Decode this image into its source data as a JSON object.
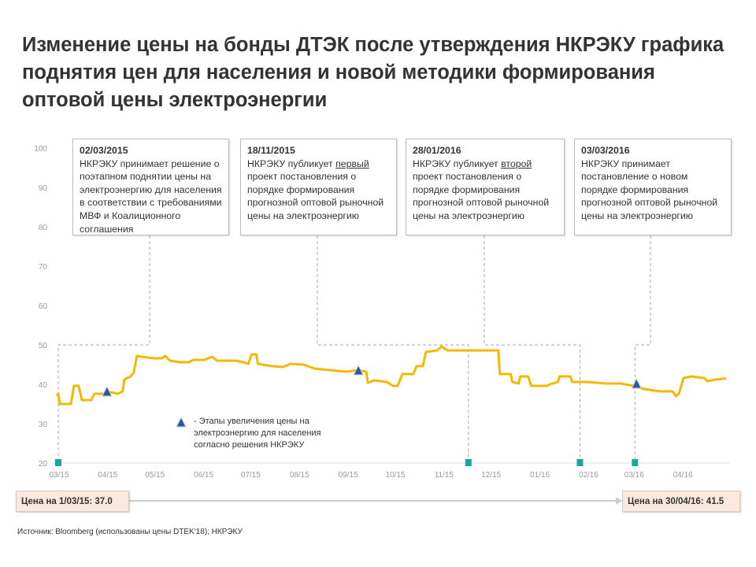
{
  "title": "Изменение цены на бонды ДТЭК после утверждения НКРЭКУ графика поднятия цен для населения и новой методики формирования оптовой цены электроэнергии",
  "events": [
    {
      "date": "02/03/2015",
      "pre": "НКРЭКУ принимает решение о поэтапном поднятии цены на электроэнергию для населения в соответствии с требованиями МВФ и Коалиционного соглашения",
      "underline": "",
      "post": "",
      "marker_date": "2015-03-02"
    },
    {
      "date": "18/11/2015",
      "pre": "НКРЭКУ публикует ",
      "underline": "первый",
      "post": " проект постановления о порядке формирования прогнозной оптовой рыночной цены на электроэнергию",
      "marker_date": "2015-11-18"
    },
    {
      "date": "28/01/2016",
      "pre": "НКРЭКУ публикует ",
      "underline": "второй",
      "post": " проект постановления о порядке формирования прогнозной оптовой рыночной цены на электроэнергию",
      "marker_date": "2016-01-28"
    },
    {
      "date": "03/03/2016",
      "pre": "НКРЭКУ принимает постановление о новом порядке формирования прогнозной оптовой рыночной цены на электроэнергию",
      "underline": "",
      "post": "",
      "marker_date": "2016-03-03"
    }
  ],
  "legend": "- Этапы увеличения цены на электроэнергию для населения согласно решения НКРЭКУ",
  "start_price_label": "Цена на 1/03/15: 37.0",
  "end_price_label": "Цена на 30/04/16: 41.5",
  "source": "Источник: Bloomberg (использованы цены DTEK'18); НКРЭКУ",
  "colors": {
    "line": "#f5b800",
    "triangle": "#2a5a9e",
    "event_marker": "#14a99a",
    "connector": "#aaaaaa",
    "price_box": "#fbe9dd"
  },
  "chart_data": {
    "type": "line",
    "title": "",
    "xlabel": "",
    "ylabel": "",
    "ylim": [
      20,
      100
    ],
    "yticks": [
      20,
      30,
      40,
      50,
      60,
      70,
      80,
      90,
      100
    ],
    "xlim": [
      "2015-03-01",
      "2016-04-30"
    ],
    "xticks": [
      {
        "date": "2015-03-01",
        "label": "03/15"
      },
      {
        "date": "2015-04-01",
        "label": "04/15"
      },
      {
        "date": "2015-05-01",
        "label": "05/15"
      },
      {
        "date": "2015-06-01",
        "label": "06/15"
      },
      {
        "date": "2015-07-01",
        "label": "07/15"
      },
      {
        "date": "2015-08-01",
        "label": "08/15"
      },
      {
        "date": "2015-09-01",
        "label": "09/15"
      },
      {
        "date": "2015-10-01",
        "label": "10/15"
      },
      {
        "date": "2015-11-01",
        "label": "11/15"
      },
      {
        "date": "2015-12-01",
        "label": "12/15"
      },
      {
        "date": "2016-01-01",
        "label": "01/16"
      },
      {
        "date": "2016-02-01",
        "label": "02/16"
      },
      {
        "date": "2016-03-01",
        "label": "03/16"
      },
      {
        "date": "2016-04-01",
        "label": "04/16"
      }
    ],
    "grid": false,
    "series": [
      {
        "points": [
          [
            "2015-03-01",
            37.0
          ],
          [
            "2015-03-02",
            37.6
          ],
          [
            "2015-03-03",
            35.0
          ],
          [
            "2015-03-10",
            35.0
          ],
          [
            "2015-03-12",
            39.6
          ],
          [
            "2015-03-15",
            39.6
          ],
          [
            "2015-03-17",
            36.0
          ],
          [
            "2015-03-23",
            36.0
          ],
          [
            "2015-03-25",
            37.6
          ],
          [
            "2015-04-01",
            37.6
          ],
          [
            "2015-04-04",
            38.0
          ],
          [
            "2015-04-09",
            37.6
          ],
          [
            "2015-04-12",
            38.2
          ],
          [
            "2015-04-13",
            41.2
          ],
          [
            "2015-04-17",
            42.0
          ],
          [
            "2015-04-19",
            43.0
          ],
          [
            "2015-04-21",
            47.2
          ],
          [
            "2015-04-24",
            47.0
          ],
          [
            "2015-05-02",
            46.6
          ],
          [
            "2015-05-07",
            46.6
          ],
          [
            "2015-05-09",
            47.2
          ],
          [
            "2015-05-12",
            46.0
          ],
          [
            "2015-05-19",
            45.6
          ],
          [
            "2015-05-24",
            45.6
          ],
          [
            "2015-05-27",
            46.2
          ],
          [
            "2015-06-03",
            46.2
          ],
          [
            "2015-06-08",
            47.0
          ],
          [
            "2015-06-11",
            46.0
          ],
          [
            "2015-06-23",
            46.0
          ],
          [
            "2015-06-28",
            45.6
          ],
          [
            "2015-07-01",
            45.2
          ],
          [
            "2015-07-03",
            47.6
          ],
          [
            "2015-07-06",
            47.6
          ],
          [
            "2015-07-07",
            45.2
          ],
          [
            "2015-07-16",
            44.6
          ],
          [
            "2015-07-23",
            44.4
          ],
          [
            "2015-07-28",
            45.2
          ],
          [
            "2015-08-05",
            45.0
          ],
          [
            "2015-08-12",
            44.0
          ],
          [
            "2015-08-22",
            43.6
          ],
          [
            "2015-09-01",
            43.2
          ],
          [
            "2015-09-09",
            43.6
          ],
          [
            "2015-09-14",
            43.2
          ],
          [
            "2015-09-15",
            40.4
          ],
          [
            "2015-09-19",
            41.0
          ],
          [
            "2015-09-27",
            40.6
          ],
          [
            "2015-10-01",
            39.6
          ],
          [
            "2015-10-04",
            39.6
          ],
          [
            "2015-10-07",
            42.6
          ],
          [
            "2015-10-14",
            42.6
          ],
          [
            "2015-10-16",
            44.6
          ],
          [
            "2015-10-20",
            44.6
          ],
          [
            "2015-10-22",
            48.2
          ],
          [
            "2015-10-29",
            48.6
          ],
          [
            "2015-11-01",
            49.6
          ],
          [
            "2015-11-03",
            49.0
          ],
          [
            "2015-11-05",
            48.6
          ],
          [
            "2015-12-07",
            48.6
          ],
          [
            "2015-12-08",
            42.6
          ],
          [
            "2015-12-15",
            42.6
          ],
          [
            "2015-12-16",
            40.6
          ],
          [
            "2015-12-20",
            40.2
          ],
          [
            "2015-12-21",
            42.0
          ],
          [
            "2015-12-26",
            42.0
          ],
          [
            "2015-12-28",
            39.6
          ],
          [
            "2016-01-07",
            39.6
          ],
          [
            "2016-01-09",
            40.0
          ],
          [
            "2016-01-14",
            40.6
          ],
          [
            "2016-01-15",
            42.0
          ],
          [
            "2016-01-22",
            42.0
          ],
          [
            "2016-01-23",
            40.6
          ],
          [
            "2016-02-01",
            40.6
          ],
          [
            "2016-02-13",
            40.2
          ],
          [
            "2016-02-23",
            40.2
          ],
          [
            "2016-03-02",
            39.6
          ],
          [
            "2016-03-09",
            38.8
          ],
          [
            "2016-03-19",
            38.2
          ],
          [
            "2016-03-27",
            38.2
          ],
          [
            "2016-03-29",
            37.0
          ],
          [
            "2016-03-31",
            37.6
          ],
          [
            "2016-04-03",
            41.6
          ],
          [
            "2016-04-08",
            42.0
          ],
          [
            "2016-04-16",
            41.6
          ],
          [
            "2016-04-18",
            40.8
          ],
          [
            "2016-04-23",
            41.2
          ],
          [
            "2016-04-30",
            41.5
          ]
        ]
      }
    ],
    "tariff_steps": [
      [
        "2015-04-02",
        38.0
      ],
      [
        "2015-09-09",
        43.4
      ],
      [
        "2016-03-04",
        40.0
      ]
    ]
  }
}
